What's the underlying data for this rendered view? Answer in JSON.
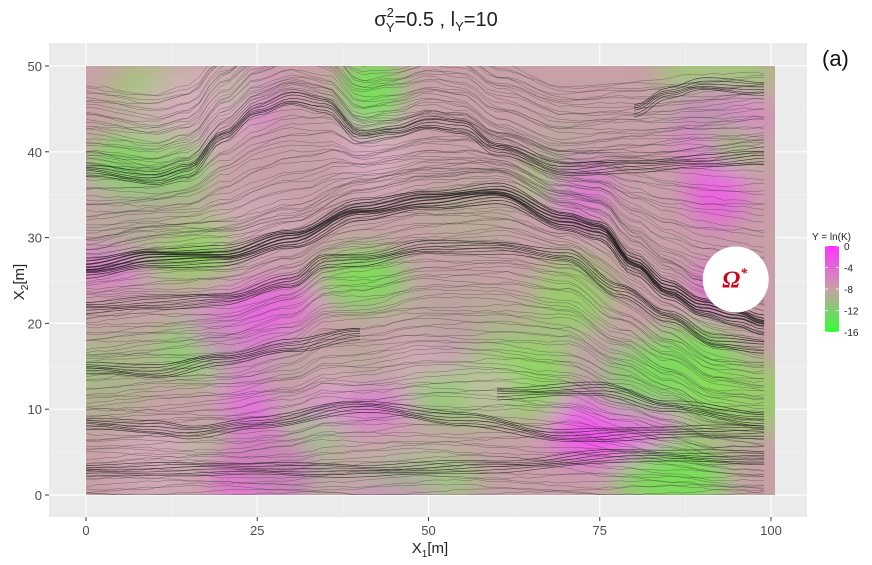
{
  "chart_data": {
    "type": "heatmap",
    "title_sigma": "σ",
    "title_sigma_sup": "2",
    "title_sigma_sub": "Y",
    "title_sigma_value": "=0.5",
    "title_sep": " , ",
    "title_l": "l",
    "title_l_sub": "Y",
    "title_l_value": "=10",
    "panel_label": "(a)",
    "xlabel_main": "X",
    "xlabel_sub": "1",
    "xlabel_unit": "[m]",
    "ylabel_main": "X",
    "ylabel_sub": "2",
    "ylabel_unit": "[m]",
    "xlim": [
      0,
      100
    ],
    "ylim": [
      0,
      50
    ],
    "x_ticks": [
      0,
      25,
      50,
      75,
      100
    ],
    "x_tick_labels": [
      "0",
      "25",
      "50",
      "75",
      "100"
    ],
    "y_ticks": [
      0,
      10,
      20,
      30,
      40,
      50
    ],
    "y_tick_labels": [
      "0",
      "10",
      "20",
      "30",
      "40",
      "50"
    ],
    "grid": true,
    "legend": {
      "title": "Y = ln(K)",
      "placement": "right",
      "ticks": [
        0,
        -4,
        -8,
        -12,
        -16
      ],
      "tick_labels": [
        "0",
        "-4",
        "-8",
        "-12",
        "-16"
      ],
      "colors": [
        "#ff33ff",
        "#c8a0a8",
        "#33ff33"
      ]
    },
    "annotation": {
      "text": "Ω",
      "sup": "*",
      "color": "#d0021b",
      "x": 95,
      "y": 25
    },
    "streamline_bands": [
      {
        "name": "main",
        "points": [
          [
            0,
            26.5
          ],
          [
            10,
            27.8
          ],
          [
            20,
            28
          ],
          [
            30,
            30
          ],
          [
            40,
            33.3
          ],
          [
            50,
            34.5
          ],
          [
            60,
            35.3
          ],
          [
            70,
            32
          ],
          [
            75,
            31
          ],
          [
            80,
            27
          ],
          [
            85,
            24
          ],
          [
            90,
            22
          ],
          [
            95,
            21
          ],
          [
            99,
            20
          ]
        ]
      },
      {
        "name": "upper",
        "points": [
          [
            0,
            38
          ],
          [
            10,
            37
          ],
          [
            15,
            38
          ],
          [
            20,
            42
          ],
          [
            25,
            45
          ],
          [
            30,
            46.3
          ],
          [
            35,
            45.5
          ],
          [
            40,
            42
          ],
          [
            45,
            42.5
          ],
          [
            50,
            43.5
          ],
          [
            55,
            43
          ],
          [
            60,
            40.5
          ],
          [
            70,
            38
          ],
          [
            80,
            38.5
          ],
          [
            90,
            39
          ],
          [
            99,
            39.5
          ]
        ]
      },
      {
        "name": "top-right",
        "points": [
          [
            80,
            45
          ],
          [
            85,
            47
          ],
          [
            90,
            48
          ],
          [
            99,
            47.5
          ]
        ]
      },
      {
        "name": "lower",
        "points": [
          [
            0,
            22
          ],
          [
            10,
            22.5
          ],
          [
            20,
            23
          ],
          [
            30,
            25
          ],
          [
            35,
            27.5
          ],
          [
            40,
            27.6
          ],
          [
            50,
            29
          ],
          [
            60,
            29
          ],
          [
            70,
            28
          ],
          [
            78,
            24
          ],
          [
            85,
            21
          ],
          [
            92,
            18
          ],
          [
            99,
            17.5
          ]
        ]
      },
      {
        "name": "lower-left",
        "points": [
          [
            0,
            15
          ],
          [
            10,
            14.5
          ],
          [
            20,
            16
          ],
          [
            30,
            17.5
          ],
          [
            40,
            19
          ]
        ]
      },
      {
        "name": "bottom-left",
        "points": [
          [
            0,
            8.5
          ],
          [
            10,
            8
          ],
          [
            15,
            7.5
          ],
          [
            25,
            8.5
          ],
          [
            40,
            10.5
          ],
          [
            55,
            9
          ],
          [
            70,
            7
          ],
          [
            85,
            7.5
          ],
          [
            99,
            7.5
          ]
        ]
      },
      {
        "name": "bottom-right",
        "points": [
          [
            60,
            12
          ],
          [
            75,
            12.5
          ],
          [
            85,
            10.5
          ],
          [
            99,
            9
          ]
        ]
      },
      {
        "name": "bottom-edge",
        "points": [
          [
            0,
            3
          ],
          [
            20,
            3.2
          ],
          [
            40,
            3
          ],
          [
            60,
            3.5
          ],
          [
            80,
            4.8
          ],
          [
            99,
            4.5
          ]
        ]
      }
    ]
  }
}
